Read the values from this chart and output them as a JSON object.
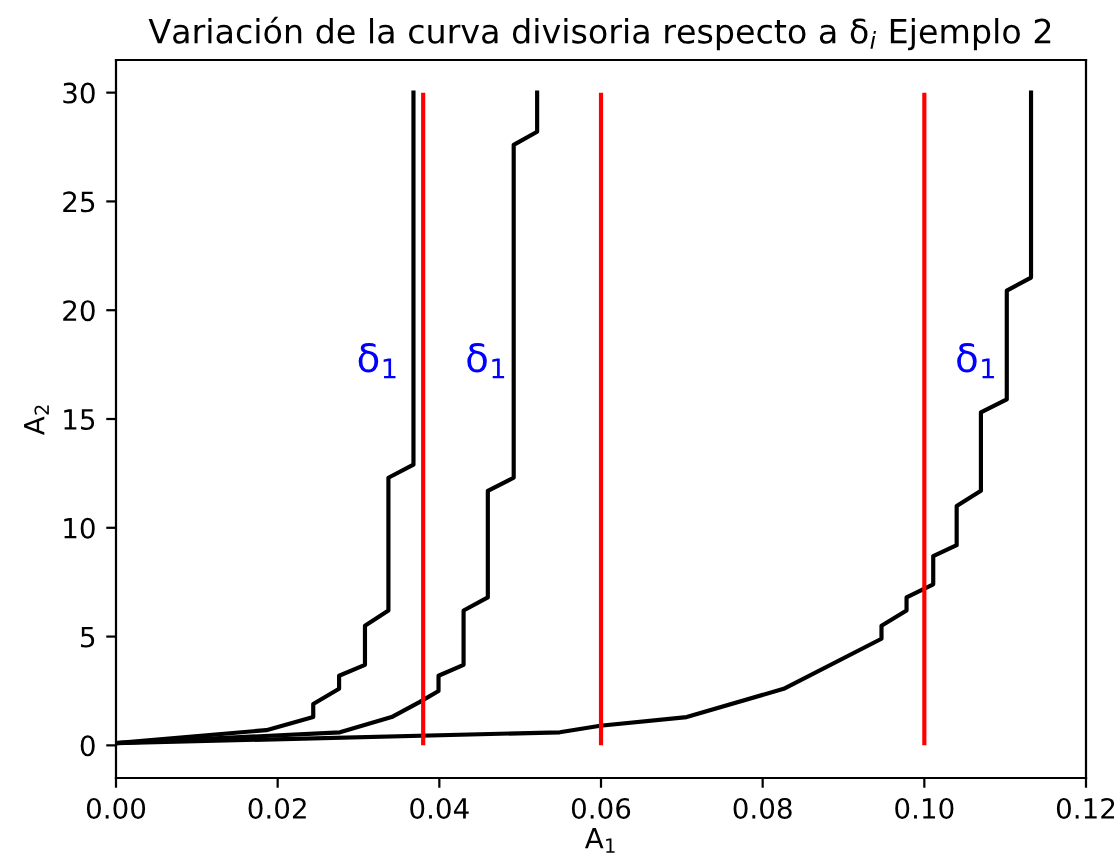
{
  "chart_data": {
    "type": "line",
    "title": "Variación de la curva divisoria respecto a δ$_{i}$ Ejemplo 2",
    "xlabel": "A$_{1}$",
    "ylabel": "A$_{2}$",
    "xlim": [
      0,
      0.12
    ],
    "ylim": [
      -1.5,
      31.5
    ],
    "xticks": [
      {
        "value": 0,
        "label": "0.00"
      },
      {
        "value": 0.02,
        "label": "0.02"
      },
      {
        "value": 0.04,
        "label": "0.04"
      },
      {
        "value": 0.06,
        "label": "0.06"
      },
      {
        "value": 0.08,
        "label": "0.08"
      },
      {
        "value": 0.1,
        "label": "0.10"
      },
      {
        "value": 0.12,
        "label": "0.12"
      }
    ],
    "yticks": [
      0,
      5,
      10,
      15,
      20,
      25,
      30
    ],
    "legend": false,
    "series": [
      {
        "color": "#000000",
        "x": [
          0,
          0.0186,
          0.0244,
          0.0244,
          0.0276,
          0.0276,
          0.0308,
          0.0308,
          0.0337,
          0.0337,
          0.0368,
          0.0368
        ],
        "values": [
          0.1,
          0.7,
          1.3,
          1.9,
          2.6,
          3.2,
          3.7,
          5.5,
          6.2,
          12.3,
          12.9,
          30
        ]
      },
      {
        "color": "#000000",
        "x": [
          0,
          0.0277,
          0.0341,
          0.0376,
          0.0399,
          0.0399,
          0.043,
          0.043,
          0.046,
          0.046,
          0.0492,
          0.0492,
          0.0521,
          0.0521
        ],
        "values": [
          0.1,
          0.6,
          1.3,
          2,
          2.5,
          3.2,
          3.7,
          6.2,
          6.8,
          11.7,
          12.3,
          27.6,
          28.2,
          30
        ]
      },
      {
        "color": "#000000",
        "x": [
          0,
          0.0549,
          0.0599,
          0.0706,
          0.0826,
          0.0947,
          0.0947,
          0.0978,
          0.0978,
          0.1011,
          0.1011,
          0.104,
          0.104,
          0.107,
          0.107,
          0.1102,
          0.1102,
          0.1132,
          0.1132
        ],
        "values": [
          0.1,
          0.6,
          0.9,
          1.3,
          2.6,
          4.9,
          5.5,
          6.2,
          6.8,
          7.4,
          8.7,
          9.2,
          11,
          11.7,
          15.3,
          15.9,
          20.9,
          21.5,
          30
        ]
      }
    ],
    "ref_lines": [
      {
        "axis": "x",
        "value": 0.038,
        "color": "#ff0000"
      },
      {
        "axis": "x",
        "value": 0.06,
        "color": "#ff0000"
      },
      {
        "axis": "x",
        "value": 0.1,
        "color": "#ff0000"
      }
    ],
    "annotations": [
      "δ$_{1}$",
      "δ$_{1}$",
      "δ$_{1}$"
    ]
  }
}
